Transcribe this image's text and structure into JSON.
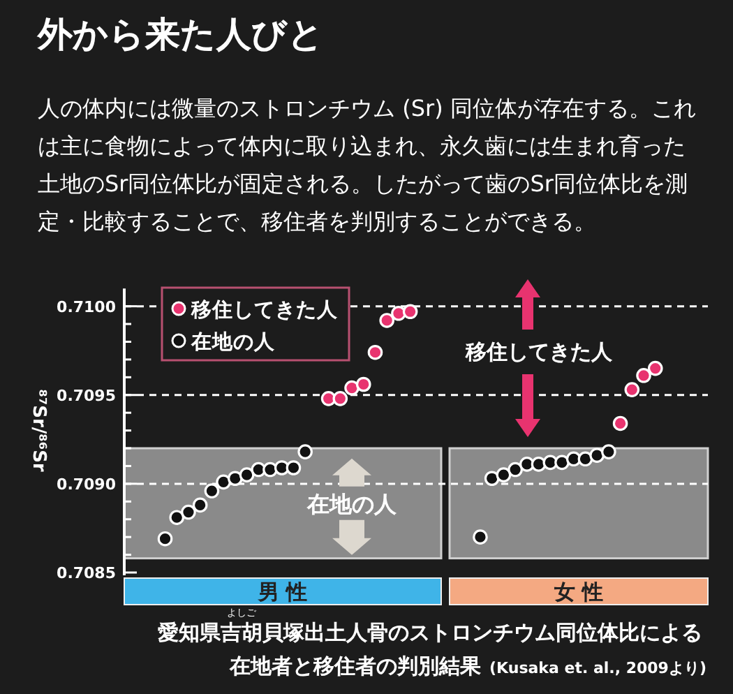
{
  "chart_data": {
    "type": "scatter",
    "title": "外から来た人びと",
    "subtitle": "人の体内には微量のストロンチウム (Sr) 同位体が存在する。これは主に食物によって体内に取り込まれ、永久歯には生まれ育った土地のSr同位体比が固定される。したがって歯のSr同位体比を測定・比較することで、移住者を判別することができる。",
    "ylabel": "⁸⁷Sr/⁸⁶Sr",
    "categories": [
      null,
      null,
      null,
      null,
      null,
      null,
      null,
      null,
      null,
      null,
      null,
      null,
      null,
      null,
      null,
      null,
      null,
      null,
      null,
      null,
      null,
      null,
      null,
      null,
      null,
      null,
      null,
      null,
      null,
      null,
      null,
      null,
      null,
      null,
      null,
      null,
      null,
      null,
      null,
      null,
      null,
      null,
      null,
      null,
      null,
      null,
      null,
      null,
      null,
      null
    ],
    "ylim": [
      0.7085,
      0.7101
    ],
    "yticks": [
      {
        "value": 0.7085,
        "label": "0.7085"
      },
      {
        "value": 0.7086,
        "label": null
      },
      {
        "value": 0.7087,
        "label": null
      },
      {
        "value": 0.7088,
        "label": null
      },
      {
        "value": 0.7089,
        "label": null
      },
      {
        "value": 0.709,
        "label": "0.7090"
      },
      {
        "value": 0.7091,
        "label": null
      },
      {
        "value": 0.7092,
        "label": null
      },
      {
        "value": 0.7093,
        "label": null
      },
      {
        "value": 0.7094,
        "label": null
      },
      {
        "value": 0.7095,
        "label": "0.7095"
      },
      {
        "value": 0.7096,
        "label": null
      },
      {
        "value": 0.7097,
        "label": null
      },
      {
        "value": 0.7098,
        "label": null
      },
      {
        "value": 0.7099,
        "label": null
      },
      {
        "value": 0.71,
        "label": "0.7100"
      }
    ],
    "tick_labels": "y",
    "legend": "top left",
    "marker": "circle",
    "series": [
      {
        "name": "移住してきた人",
        "color": "#e8336f",
        "values": [
          null,
          null,
          null,
          null,
          null,
          null,
          null,
          null,
          null,
          null,
          null,
          null,
          null,
          null,
          null,
          null,
          null,
          0.70948,
          0.70948,
          0.70954,
          0.70956,
          0.70974,
          0.70992,
          0.70996,
          0.70997,
          null,
          null,
          null,
          null,
          null,
          null,
          null,
          null,
          null,
          null,
          null,
          null,
          null,
          null,
          null,
          null,
          null,
          0.70934,
          0.70953,
          0.70961,
          0.70965,
          null,
          null,
          null,
          null
        ]
      },
      {
        "name": "在地の人",
        "color": "#111111",
        "values": [
          null,
          null,
          null,
          0.70869,
          0.70881,
          0.70884,
          0.70888,
          0.70896,
          0.70901,
          0.70903,
          0.70905,
          0.70908,
          0.70908,
          0.70909,
          0.70909,
          0.70918,
          null,
          null,
          null,
          null,
          null,
          null,
          null,
          null,
          null,
          null,
          null,
          null,
          null,
          null,
          0.7087,
          0.70903,
          0.70905,
          0.70908,
          0.70911,
          0.70911,
          0.70912,
          0.70912,
          0.70914,
          0.70914,
          0.70916,
          0.70918,
          null,
          null,
          null,
          null,
          null,
          null,
          null,
          null
        ]
      }
    ],
    "bands": [
      {
        "axis": "y",
        "from": 0.70858,
        "to": 0.7092,
        "label": "在地の人",
        "color": "#8a8a8a"
      },
      {
        "axis": "y",
        "from": 0.70858,
        "to": 0.7092,
        "color": "#8a8a8a"
      }
    ],
    "ref_lines": [
      {
        "axis": "y",
        "value": 0.709,
        "color": "#ffffff",
        "line_style": "dashed"
      },
      {
        "axis": "y",
        "value": 0.7095,
        "color": "#ffffff",
        "line_style": "dashed"
      },
      {
        "axis": "y",
        "value": 0.71,
        "color": "#ffffff",
        "line_style": "dashed"
      }
    ],
    "annotations": [
      "男 性",
      "女 性",
      "移住してきた人",
      "よしご",
      "愛知県吉胡貝塚出土人骨のストロンチウム同位体比による",
      "在地者と移住者の判別結果",
      "(Kusaka et. al., 2009より)"
    ]
  }
}
